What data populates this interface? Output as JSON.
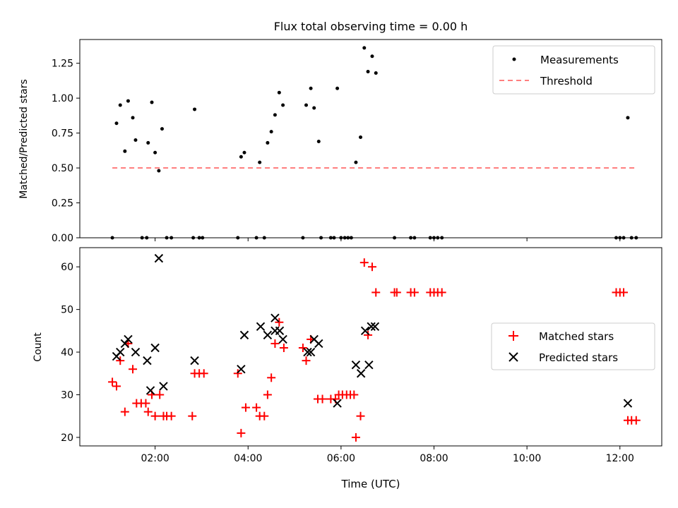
{
  "chart_data": [
    {
      "type": "scatter",
      "title": "Flux total observing time = 0.00 h",
      "xlabel": "",
      "ylabel": "Matched/Predicted stars",
      "ylim": [
        0,
        1.42
      ],
      "xlim_hours": [
        0.38,
        12.9
      ],
      "yticks": [
        "0.00",
        "0.25",
        "0.50",
        "0.75",
        "1.00",
        "1.25"
      ],
      "legend_position": "top-right",
      "threshold": {
        "name": "Threshold",
        "value": 0.5,
        "x_range_hours": [
          1.08,
          12.35
        ],
        "color": "#ff7f7f",
        "style": "dashed"
      },
      "series": [
        {
          "name": "Measurements",
          "color": "#000000",
          "marker": "dot",
          "points": [
            [
              1.08,
              0
            ],
            [
              1.17,
              0.82
            ],
            [
              1.25,
              0.95
            ],
            [
              1.35,
              0.62
            ],
            [
              1.42,
              0.98
            ],
            [
              1.52,
              0.86
            ],
            [
              1.58,
              0.7
            ],
            [
              1.72,
              0
            ],
            [
              1.82,
              0
            ],
            [
              1.85,
              0.68
            ],
            [
              1.93,
              0.97
            ],
            [
              2.0,
              0.61
            ],
            [
              2.08,
              0.48
            ],
            [
              2.15,
              0.78
            ],
            [
              2.25,
              0
            ],
            [
              2.35,
              0
            ],
            [
              2.82,
              0
            ],
            [
              2.85,
              0.92
            ],
            [
              2.95,
              0
            ],
            [
              3.02,
              0
            ],
            [
              3.78,
              0
            ],
            [
              3.85,
              0.58
            ],
            [
              3.92,
              0.61
            ],
            [
              4.18,
              0
            ],
            [
              4.25,
              0.54
            ],
            [
              4.35,
              0
            ],
            [
              4.42,
              0.68
            ],
            [
              4.5,
              0.76
            ],
            [
              4.58,
              0.88
            ],
            [
              4.67,
              1.04
            ],
            [
              4.75,
              0.95
            ],
            [
              5.18,
              0
            ],
            [
              5.25,
              0.95
            ],
            [
              5.35,
              1.07
            ],
            [
              5.42,
              0.93
            ],
            [
              5.52,
              0.69
            ],
            [
              5.57,
              0
            ],
            [
              5.78,
              0
            ],
            [
              5.85,
              0
            ],
            [
              5.92,
              1.07
            ],
            [
              6.0,
              0
            ],
            [
              6.08,
              0
            ],
            [
              6.15,
              0
            ],
            [
              6.22,
              0
            ],
            [
              6.32,
              0.54
            ],
            [
              6.42,
              0.72
            ],
            [
              6.5,
              1.36
            ],
            [
              6.58,
              1.19
            ],
            [
              6.67,
              1.3
            ],
            [
              6.75,
              1.18
            ],
            [
              7.15,
              0
            ],
            [
              7.5,
              0
            ],
            [
              7.58,
              0
            ],
            [
              7.92,
              0
            ],
            [
              8.0,
              0
            ],
            [
              8.08,
              0
            ],
            [
              8.17,
              0
            ],
            [
              11.92,
              0
            ],
            [
              12.0,
              0
            ],
            [
              12.08,
              0
            ],
            [
              12.17,
              0.86
            ],
            [
              12.25,
              0
            ],
            [
              12.35,
              0
            ]
          ]
        }
      ]
    },
    {
      "type": "scatter",
      "title": "",
      "xlabel": "Time (UTC)",
      "ylabel": "Count",
      "ylim": [
        18,
        64.5
      ],
      "xlim_hours": [
        0.38,
        12.9
      ],
      "yticks": [
        "20",
        "30",
        "40",
        "50",
        "60"
      ],
      "xticks": [
        "02:00",
        "04:00",
        "06:00",
        "08:00",
        "10:00",
        "12:00"
      ],
      "legend_position": "center-right",
      "series": [
        {
          "name": "Matched stars",
          "color": "#ff0000",
          "marker": "plus",
          "points": [
            [
              1.08,
              33
            ],
            [
              1.17,
              32
            ],
            [
              1.25,
              38
            ],
            [
              1.35,
              26
            ],
            [
              1.42,
              42
            ],
            [
              1.52,
              36
            ],
            [
              1.6,
              28
            ],
            [
              1.7,
              28
            ],
            [
              1.8,
              28
            ],
            [
              1.85,
              26
            ],
            [
              1.93,
              30
            ],
            [
              2.0,
              25
            ],
            [
              2.1,
              30
            ],
            [
              2.18,
              25
            ],
            [
              2.25,
              25
            ],
            [
              2.35,
              25
            ],
            [
              2.8,
              25
            ],
            [
              2.85,
              35
            ],
            [
              2.95,
              35
            ],
            [
              3.05,
              35
            ],
            [
              3.78,
              35
            ],
            [
              3.85,
              21
            ],
            [
              3.95,
              27
            ],
            [
              4.18,
              27
            ],
            [
              4.25,
              25
            ],
            [
              4.35,
              25
            ],
            [
              4.42,
              30
            ],
            [
              4.5,
              34
            ],
            [
              4.58,
              42
            ],
            [
              4.67,
              47
            ],
            [
              4.77,
              41
            ],
            [
              5.18,
              41
            ],
            [
              5.25,
              38
            ],
            [
              5.35,
              43
            ],
            [
              5.5,
              29
            ],
            [
              5.6,
              29
            ],
            [
              5.78,
              29
            ],
            [
              5.88,
              29
            ],
            [
              5.95,
              30
            ],
            [
              6.03,
              30
            ],
            [
              6.12,
              30
            ],
            [
              6.2,
              30
            ],
            [
              6.28,
              30
            ],
            [
              6.32,
              20
            ],
            [
              6.42,
              25
            ],
            [
              6.5,
              61
            ],
            [
              6.58,
              44
            ],
            [
              6.67,
              60
            ],
            [
              6.75,
              54
            ],
            [
              7.15,
              54
            ],
            [
              7.2,
              54
            ],
            [
              7.5,
              54
            ],
            [
              7.58,
              54
            ],
            [
              7.92,
              54
            ],
            [
              8.0,
              54
            ],
            [
              8.08,
              54
            ],
            [
              8.17,
              54
            ],
            [
              11.92,
              54
            ],
            [
              12.0,
              54
            ],
            [
              12.08,
              54
            ],
            [
              12.17,
              24
            ],
            [
              12.25,
              24
            ],
            [
              12.35,
              24
            ]
          ]
        },
        {
          "name": "Predicted stars",
          "color": "#000000",
          "marker": "x",
          "points": [
            [
              1.17,
              39
            ],
            [
              1.25,
              40
            ],
            [
              1.35,
              42
            ],
            [
              1.42,
              43
            ],
            [
              1.58,
              40
            ],
            [
              1.83,
              38
            ],
            [
              1.9,
              31
            ],
            [
              2.0,
              41
            ],
            [
              2.08,
              62
            ],
            [
              2.18,
              32
            ],
            [
              2.85,
              38
            ],
            [
              3.85,
              36
            ],
            [
              3.92,
              44
            ],
            [
              4.27,
              46
            ],
            [
              4.42,
              44
            ],
            [
              4.58,
              48
            ],
            [
              4.58,
              45
            ],
            [
              4.68,
              45
            ],
            [
              4.75,
              43
            ],
            [
              5.28,
              40
            ],
            [
              5.35,
              40
            ],
            [
              5.42,
              43
            ],
            [
              5.52,
              42
            ],
            [
              5.92,
              28
            ],
            [
              6.32,
              37
            ],
            [
              6.43,
              35
            ],
            [
              6.52,
              45
            ],
            [
              6.6,
              37
            ],
            [
              6.65,
              46
            ],
            [
              6.73,
              46
            ],
            [
              12.17,
              28
            ]
          ]
        }
      ]
    }
  ]
}
